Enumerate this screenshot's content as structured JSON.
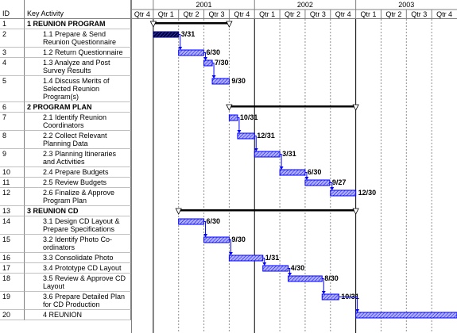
{
  "chart_data": {
    "type": "gantt",
    "headers": {
      "id": "ID",
      "activity": "Key Activity"
    },
    "years": [
      "2001",
      "2002",
      "2003"
    ],
    "quarters": [
      "Qtr 4",
      "Qtr 1",
      "Qtr 2",
      "Qtr 3",
      "Qtr 4",
      "Qtr 1",
      "Qtr 2",
      "Qtr 3",
      "Qtr 4",
      "Qtr 1",
      "Qtr 2",
      "Qtr 3",
      "Qtr 4"
    ],
    "xlim": [
      -0.875,
      12
    ],
    "bar_color": "#0000ff",
    "tasks": [
      {
        "id": 1,
        "name": "1 REUNION PROGRAM",
        "summary": true,
        "start": 0,
        "end": 3
      },
      {
        "id": 2,
        "name": "1.1 Prepare & Send Reunion Questionnaire",
        "start": 0,
        "end": 1,
        "end_label": "3/31",
        "color": "#000080"
      },
      {
        "id": 3,
        "name": "1.2 Return Questionnaire",
        "start": 1,
        "end": 2,
        "end_label": "6/30"
      },
      {
        "id": 4,
        "name": "1.3 Analyze and Post Survey Results",
        "start": 2,
        "end": 2.33,
        "end_label": "7/30"
      },
      {
        "id": 5,
        "name": "1.4 Discuss Merits of Selected Reunion Program(s)",
        "start": 2.33,
        "end": 3,
        "end_label": "9/30"
      },
      {
        "id": 6,
        "name": "2 PROGRAM PLAN",
        "summary": true,
        "start": 3,
        "end": 8
      },
      {
        "id": 7,
        "name": "2.1 Identify Reunion Coordinators",
        "start": 3,
        "end": 3.33,
        "end_label": "10/31"
      },
      {
        "id": 8,
        "name": "2.2 Collect Relevant Planning Data",
        "start": 3.33,
        "end": 4,
        "end_label": "12/31"
      },
      {
        "id": 9,
        "name": "2.3 Planning Itineraries and Activities",
        "start": 4,
        "end": 5,
        "end_label": "3/31"
      },
      {
        "id": 10,
        "name": "2.4 Prepare Budgets",
        "start": 5,
        "end": 6,
        "end_label": "6/30"
      },
      {
        "id": 11,
        "name": "2.5 Review Budgets",
        "start": 6,
        "end": 6.97,
        "end_label": "9/27"
      },
      {
        "id": 12,
        "name": "2.6 Finalize & Approve Program Plan",
        "start": 7,
        "end": 8,
        "end_label": "12/30"
      },
      {
        "id": 13,
        "name": "3 REUNION CD",
        "summary": true,
        "start": 1,
        "end": 8
      },
      {
        "id": 14,
        "name": "3.1 Design CD Layout & Prepare Specifications",
        "start": 1,
        "end": 2,
        "end_label": "6/30"
      },
      {
        "id": 15,
        "name": "3.2 Identify Photo Co-ordinators",
        "start": 2,
        "end": 3,
        "end_label": "9/30"
      },
      {
        "id": 16,
        "name": "3.3 Consolidate Photo",
        "start": 3,
        "end": 4.33,
        "end_label": "1/31"
      },
      {
        "id": 17,
        "name": "3.4 Prototype CD Layout",
        "start": 4.33,
        "end": 5.33,
        "end_label": "4/30"
      },
      {
        "id": 18,
        "name": "3.5 Review & Approve CD Layout",
        "start": 5.33,
        "end": 6.67,
        "end_label": "8/30"
      },
      {
        "id": 19,
        "name": "3.6 Prepare Detailed Plan for CD Production",
        "start": 6.67,
        "end": 7.33,
        "end_label": "10/31"
      },
      {
        "id": 20,
        "name": "4 REUNION",
        "start": 8,
        "end": 12
      }
    ]
  }
}
